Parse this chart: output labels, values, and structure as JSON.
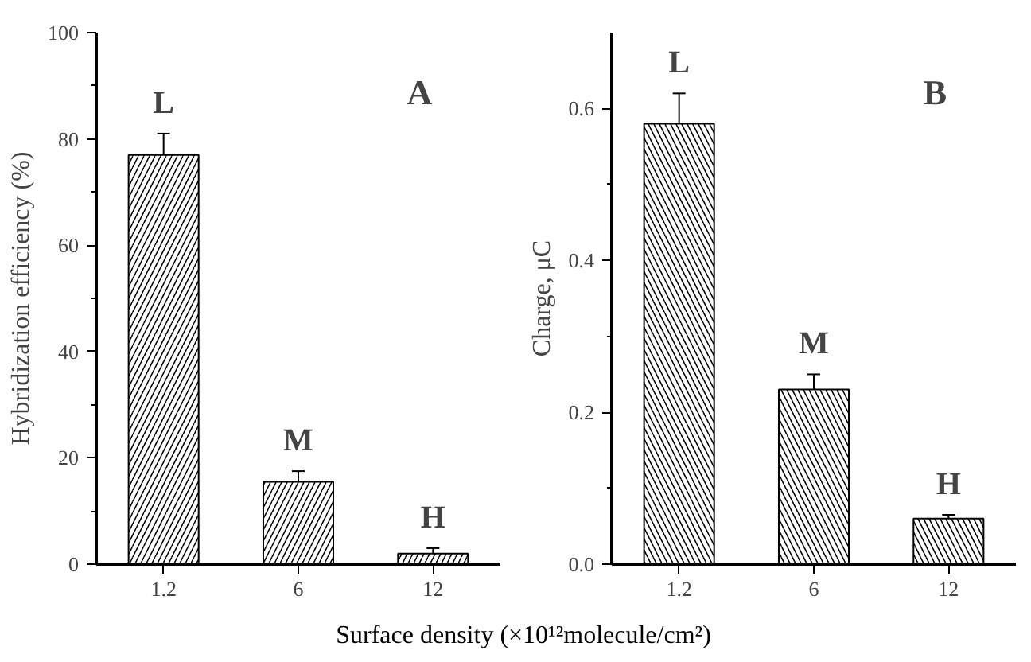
{
  "chart_data": [
    {
      "type": "bar",
      "categories": [
        "1.2",
        "6",
        "12"
      ],
      "values": [
        77,
        15.5,
        2
      ],
      "errors": [
        4,
        2,
        1
      ],
      "color": "#000000",
      "ylabel": "Hybridization efficiency (%)",
      "xlabel": "Surface density (×10¹²molecule/cm²)",
      "ylim": [
        0,
        100
      ],
      "yticks": [
        0,
        20,
        40,
        60,
        80,
        100
      ],
      "annotations": [
        {
          "text": "L",
          "x": "1.2",
          "y": 77
        },
        {
          "text": "M",
          "x": "6",
          "y": 15.5
        },
        {
          "text": "H",
          "x": "12",
          "y": 2
        },
        "A"
      ]
    },
    {
      "type": "bar",
      "categories": [
        "1.2",
        "6",
        "12"
      ],
      "values": [
        0.58,
        0.23,
        0.06
      ],
      "errors": [
        0.04,
        0.02,
        0.005
      ],
      "color": "#000000",
      "ylabel": "Charge, μC",
      "ylim": [
        0,
        0.7
      ],
      "yticks": [
        {
          "value": 0,
          "label": "0.0"
        },
        {
          "value": 0.2,
          "label": "0.2"
        },
        {
          "value": 0.4,
          "label": "0.4"
        },
        {
          "value": 0.6,
          "label": "0.6"
        }
      ],
      "annotations": [
        {
          "text": "L",
          "x": "1.2",
          "y": 0.58
        },
        {
          "text": "M",
          "x": "6",
          "y": 0.23
        },
        {
          "text": "H",
          "x": "12",
          "y": 0.06
        },
        "B"
      ]
    }
  ]
}
